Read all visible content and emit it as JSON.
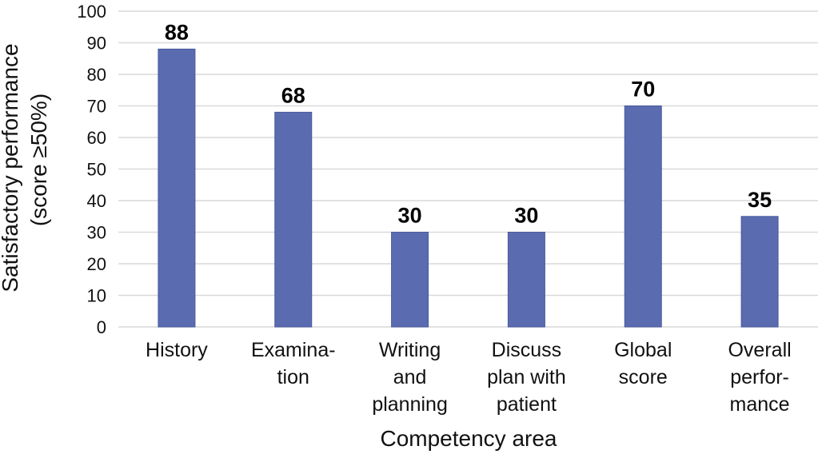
{
  "chart_data": {
    "type": "bar",
    "categories": [
      [
        "History"
      ],
      [
        "Examina-",
        "tion"
      ],
      [
        "Writing",
        "and",
        "planning"
      ],
      [
        "Discuss",
        "plan with",
        "patient"
      ],
      [
        "Global",
        "score"
      ],
      [
        "Overall",
        "perfor-",
        "mance"
      ]
    ],
    "values": [
      88,
      68,
      30,
      30,
      70,
      35
    ],
    "data_labels": [
      "88",
      "68",
      "30",
      "30",
      "70",
      "35"
    ],
    "xlabel": "Competency  area",
    "ylabel_lines": [
      "Satisfactory  performance",
      "(score  ≥50%)"
    ],
    "ylim": [
      0,
      100
    ],
    "yticks": [
      0,
      10,
      20,
      30,
      40,
      50,
      60,
      70,
      80,
      90,
      100
    ],
    "grid": true,
    "legend": "none",
    "colors": {
      "bar": "#5b6bb0",
      "bar_edge": "#4a5a9e",
      "grid": "#d9d9d9"
    }
  }
}
